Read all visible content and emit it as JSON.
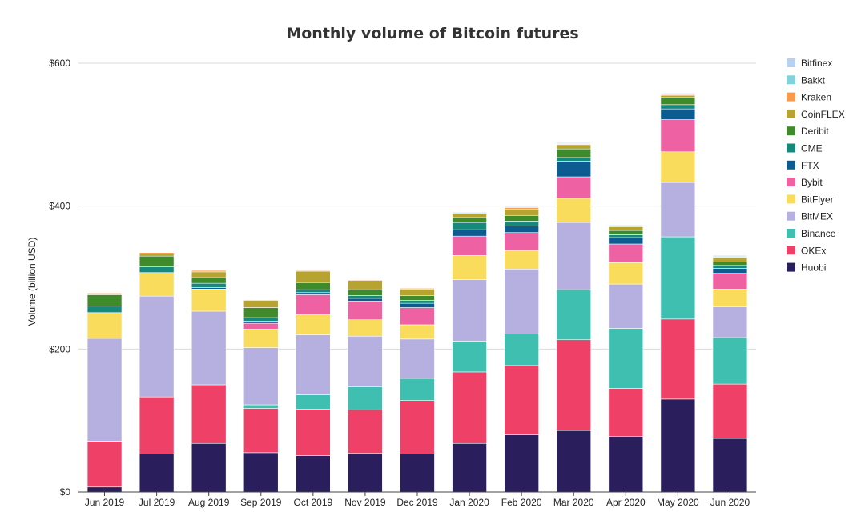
{
  "chart_data": {
    "type": "bar",
    "stacked": true,
    "title": "Monthly volume of Bitcoin futures",
    "xlabel": "",
    "ylabel": "Volume (billion USD)",
    "ylim": [
      0,
      600
    ],
    "yticks": [
      0,
      200,
      400,
      600
    ],
    "ytick_labels": [
      "$0",
      "$200",
      "$400",
      "$600"
    ],
    "grid": true,
    "legend_position": "right",
    "categories": [
      "Jun 2019",
      "Jul 2019",
      "Aug 2019",
      "Sep 2019",
      "Oct 2019",
      "Nov 2019",
      "Dec 2019",
      "Jan 2020",
      "Feb 2020",
      "Mar 2020",
      "Apr 2020",
      "May 2020",
      "Jun 2020"
    ],
    "series": [
      {
        "name": "Huobi",
        "color": "#2a1f5c",
        "values": [
          7,
          53,
          68,
          55,
          51,
          54,
          53,
          68,
          80,
          86,
          78,
          130,
          75
        ]
      },
      {
        "name": "OKEx",
        "color": "#ef4068",
        "values": [
          64,
          80,
          82,
          62,
          65,
          61,
          75,
          100,
          97,
          127,
          67,
          112,
          76
        ]
      },
      {
        "name": "Binance",
        "color": "#3ebfb0",
        "values": [
          0,
          0,
          0,
          5,
          20,
          32,
          31,
          43,
          44,
          70,
          84,
          115,
          65
        ]
      },
      {
        "name": "BitMEX",
        "color": "#b6b0e0",
        "values": [
          144,
          141,
          103,
          80,
          84,
          71,
          55,
          86,
          91,
          94,
          62,
          76,
          43
        ]
      },
      {
        "name": "BitFlyer",
        "color": "#f9dc5c",
        "values": [
          36,
          33,
          31,
          26,
          28,
          23,
          20,
          34,
          26,
          34,
          30,
          43,
          25
        ]
      },
      {
        "name": "Bybit",
        "color": "#ee62a4",
        "values": [
          0,
          0,
          0,
          8,
          28,
          26,
          24,
          27,
          25,
          30,
          26,
          45,
          22
        ]
      },
      {
        "name": "FTX",
        "color": "#0c5b91",
        "values": [
          0,
          0,
          2,
          3,
          3,
          4,
          6,
          9,
          9,
          22,
          9,
          15,
          7
        ]
      },
      {
        "name": "CME",
        "color": "#158a7c",
        "values": [
          9,
          8,
          6,
          5,
          4,
          4,
          4,
          10,
          7,
          5,
          4,
          6,
          4
        ]
      },
      {
        "name": "Deribit",
        "color": "#3f8a2a",
        "values": [
          16,
          15,
          8,
          14,
          10,
          8,
          7,
          7,
          8,
          12,
          6,
          10,
          5
        ]
      },
      {
        "name": "CoinFLEX",
        "color": "#b7a330",
        "values": [
          2,
          3,
          8,
          10,
          16,
          13,
          9,
          5,
          9,
          6,
          5,
          3,
          6
        ]
      },
      {
        "name": "Kraken",
        "color": "#f79b4a",
        "values": [
          1,
          2,
          2,
          1,
          1,
          1,
          1,
          1,
          2,
          1,
          1,
          1,
          1
        ]
      },
      {
        "name": "Bakkt",
        "color": "#7fd3dd",
        "values": [
          0,
          0,
          0,
          0,
          0,
          0,
          0,
          1,
          1,
          1,
          1,
          1,
          1
        ]
      },
      {
        "name": "Bitfinex",
        "color": "#b8d0f2",
        "values": [
          0,
          0,
          0,
          0,
          0,
          0,
          0,
          1,
          1,
          1,
          1,
          1,
          1
        ]
      }
    ],
    "legend_order": [
      "Bitfinex",
      "Bakkt",
      "Kraken",
      "CoinFLEX",
      "Deribit",
      "CME",
      "FTX",
      "Bybit",
      "BitFlyer",
      "BitMEX",
      "Binance",
      "OKEx",
      "Huobi"
    ]
  }
}
